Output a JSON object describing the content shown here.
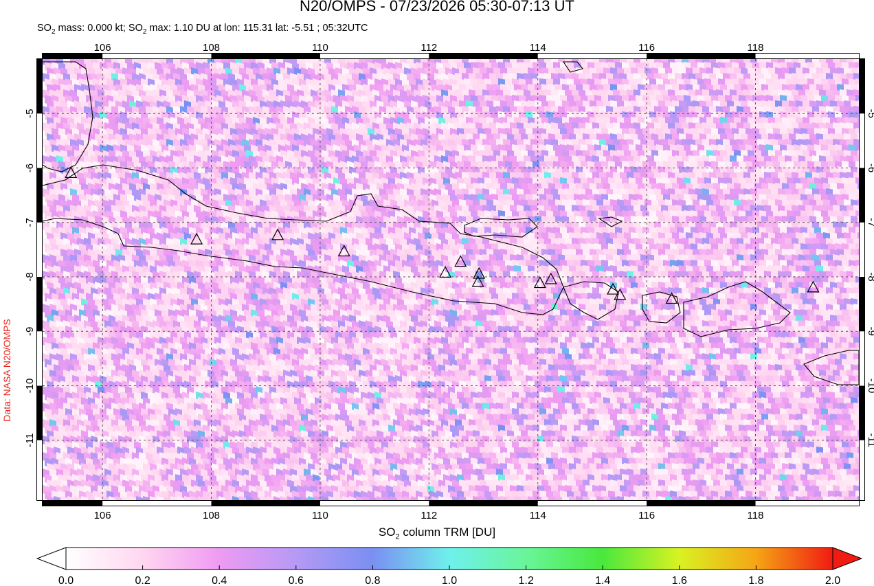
{
  "header": {
    "title": "N20/OMPS - 07/23/2026 05:30-07:13 UT",
    "stats_prefix": "SO",
    "stats_sub": "2",
    "stats_mid": " mass: 0.000 kt; SO",
    "stats_sub2": "2",
    "stats_suffix": " max: 1.10 DU at lon: 115.31 lat: -5.51 ; 05:32UTC"
  },
  "credit": "Data: NASA N20/OMPS",
  "colorbar": {
    "label_prefix": "SO",
    "label_sub": "2",
    "label_suffix": " column TRM [DU]",
    "min": 0.0,
    "max": 2.0,
    "ticks": [
      "0.0",
      "0.2",
      "0.4",
      "0.6",
      "0.8",
      "1.0",
      "1.2",
      "1.4",
      "1.6",
      "1.8",
      "2.0"
    ],
    "colors": [
      "#ffffff",
      "#ffd6f0",
      "#ee9bf2",
      "#b59af5",
      "#7a8ff2",
      "#6ff0ec",
      "#69f59a",
      "#49e83d",
      "#d9f222",
      "#f5a515",
      "#f01b12"
    ]
  },
  "chart_data": {
    "type": "heatmap",
    "title": "N20/OMPS - 07/23/2026 05:30-07:13 UT",
    "xlabel": "",
    "ylabel": "",
    "xlim": [
      104.9,
      119.9
    ],
    "ylim": [
      -12.1,
      -4.0
    ],
    "x_ticks": [
      106,
      108,
      110,
      112,
      114,
      116,
      118
    ],
    "y_ticks": [
      -5,
      -6,
      -7,
      -8,
      -9,
      -10,
      -11
    ],
    "grid": true,
    "colorbar_label": "SO2 column TRM [DU]",
    "volcanoes": [
      {
        "lon": 105.42,
        "lat": -6.1
      },
      {
        "lon": 107.73,
        "lat": -7.32
      },
      {
        "lon": 109.22,
        "lat": -7.24
      },
      {
        "lon": 110.44,
        "lat": -7.54
      },
      {
        "lon": 112.3,
        "lat": -7.93
      },
      {
        "lon": 112.58,
        "lat": -7.73
      },
      {
        "lon": 112.92,
        "lat": -7.95
      },
      {
        "lon": 112.9,
        "lat": -8.1
      },
      {
        "lon": 114.04,
        "lat": -8.12
      },
      {
        "lon": 114.24,
        "lat": -8.05
      },
      {
        "lon": 115.38,
        "lat": -8.24
      },
      {
        "lon": 115.51,
        "lat": -8.34
      },
      {
        "lon": 116.46,
        "lat": -8.41
      },
      {
        "lon": 119.06,
        "lat": -8.2
      }
    ],
    "so2_max_du": 1.1,
    "so2_max_lon": 115.31,
    "so2_max_lat": -5.51,
    "so2_mass_kt": 0.0
  }
}
